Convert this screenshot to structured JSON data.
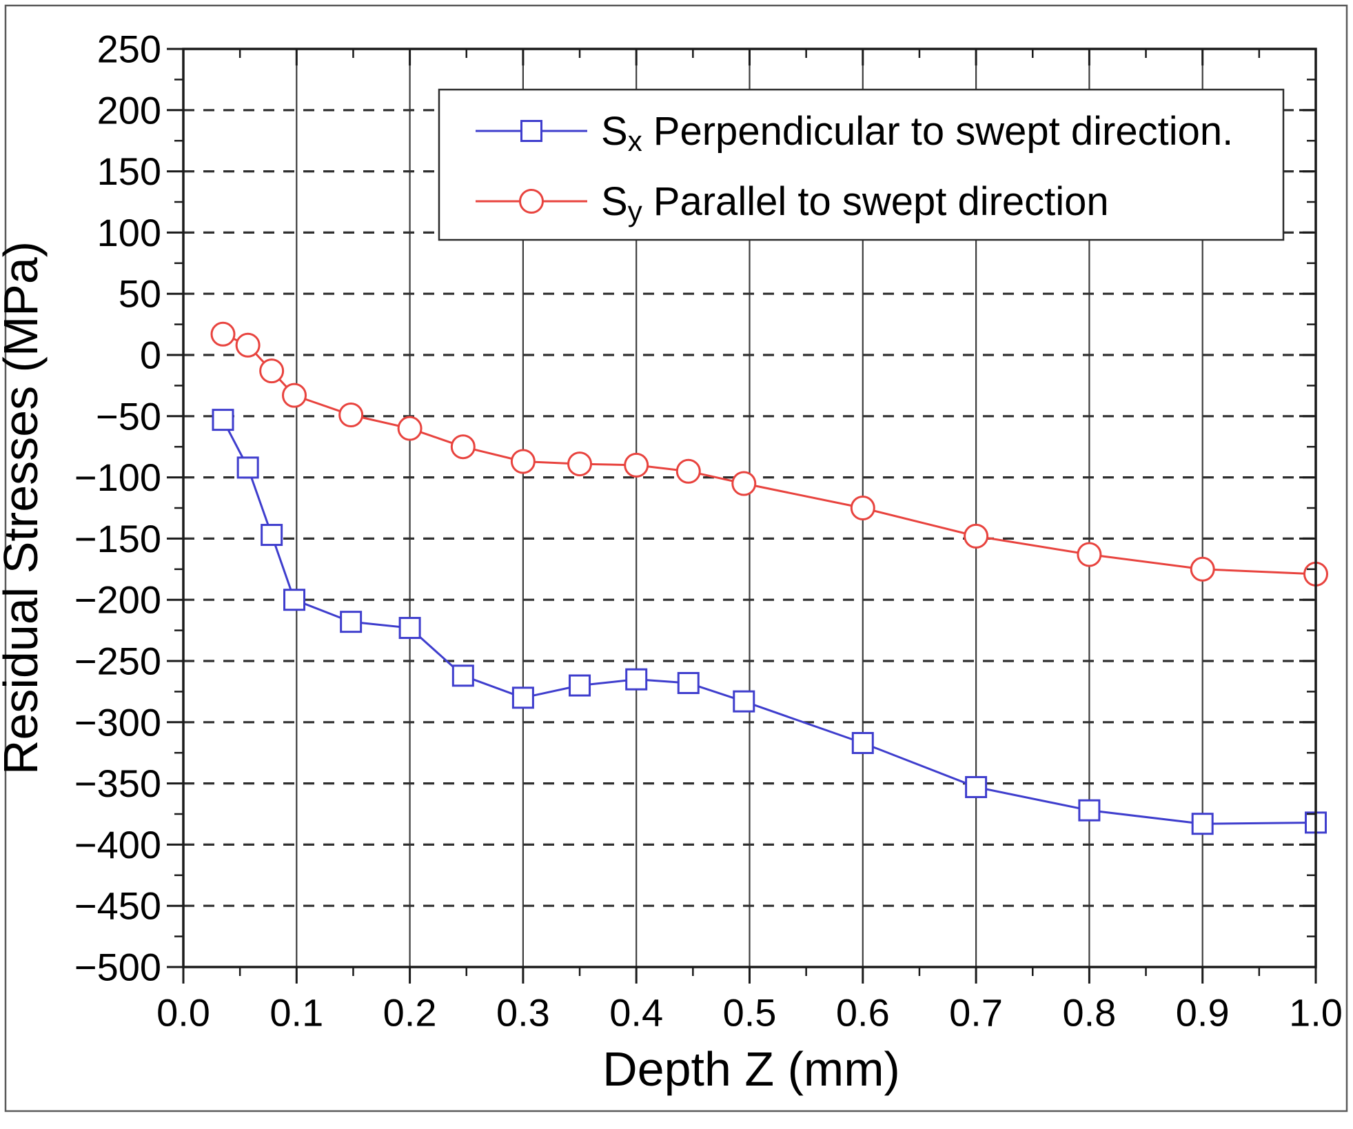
{
  "figure": {
    "background": "#ffffff",
    "border_color": "#5a5a5a"
  },
  "colors": {
    "frame": "#1a1a1a",
    "grid_vertical": "#3c3c3c",
    "grid_horizontal": "#2e2e2e",
    "tick": "#1a1a1a",
    "text": "#000000",
    "series_sx": "#3e3dcd",
    "series_sy": "#e8433e",
    "legend_border": "#2b2b2b",
    "legend_background": "#ffffff"
  },
  "chart_data": {
    "type": "line",
    "title": "",
    "xlabel": "Depth Z (mm)",
    "ylabel": "Residual Stresses (MPa)",
    "xlim": [
      0.0,
      1.0
    ],
    "ylim": [
      -500,
      250
    ],
    "grid": {
      "horizontal": "dashed",
      "vertical": "solid"
    },
    "legend_position": "top-center",
    "x": [
      0.035,
      0.057,
      0.078,
      0.098,
      0.148,
      0.2,
      0.247,
      0.3,
      0.35,
      0.4,
      0.446,
      0.495,
      0.6,
      0.7,
      0.8,
      0.9,
      1.0
    ],
    "series": [
      {
        "name": "Sx Perpendicular to swept direction.",
        "label_base": "S",
        "label_sub": "x",
        "label_rest": " Perpendicular to swept direction.",
        "marker": "square",
        "color": "#3e3dcd",
        "values": [
          -53,
          -92,
          -147,
          -200,
          -218,
          -223,
          -262,
          -280,
          -270,
          -265,
          -268,
          -283,
          -317,
          -353,
          -372,
          -383,
          -382
        ]
      },
      {
        "name": "Sy Parallel to swept direction",
        "label_base": "S",
        "label_sub": "y",
        "label_rest": " Parallel to swept direction",
        "marker": "circle",
        "color": "#e8433e",
        "values": [
          17,
          8,
          -13,
          -33,
          -49,
          -60,
          -75,
          -87,
          -89,
          -90,
          -95,
          -105,
          -125,
          -148,
          -163,
          -175,
          -179
        ]
      }
    ],
    "x_ticks": {
      "major": [
        0,
        0.1,
        0.2,
        0.3,
        0.4,
        0.5,
        0.6,
        0.7,
        0.8,
        0.9,
        1.0
      ],
      "labels": [
        "0.0",
        "0.1",
        "0.2",
        "0.3",
        "0.4",
        "0.5",
        "0.6",
        "0.7",
        "0.8",
        "0.9",
        "1.0"
      ],
      "minor_step": 0.05
    },
    "y_ticks": {
      "major": [
        250,
        200,
        150,
        100,
        50,
        0,
        -50,
        -100,
        -150,
        -200,
        -250,
        -300,
        -350,
        -400,
        -450,
        -500
      ],
      "labels": [
        "250",
        "200",
        "150",
        "100",
        "50",
        "0",
        "−50",
        "−100",
        "−150",
        "−200",
        "−250",
        "−300",
        "−350",
        "−400",
        "−450",
        "−500"
      ],
      "minor_step": 25
    }
  }
}
